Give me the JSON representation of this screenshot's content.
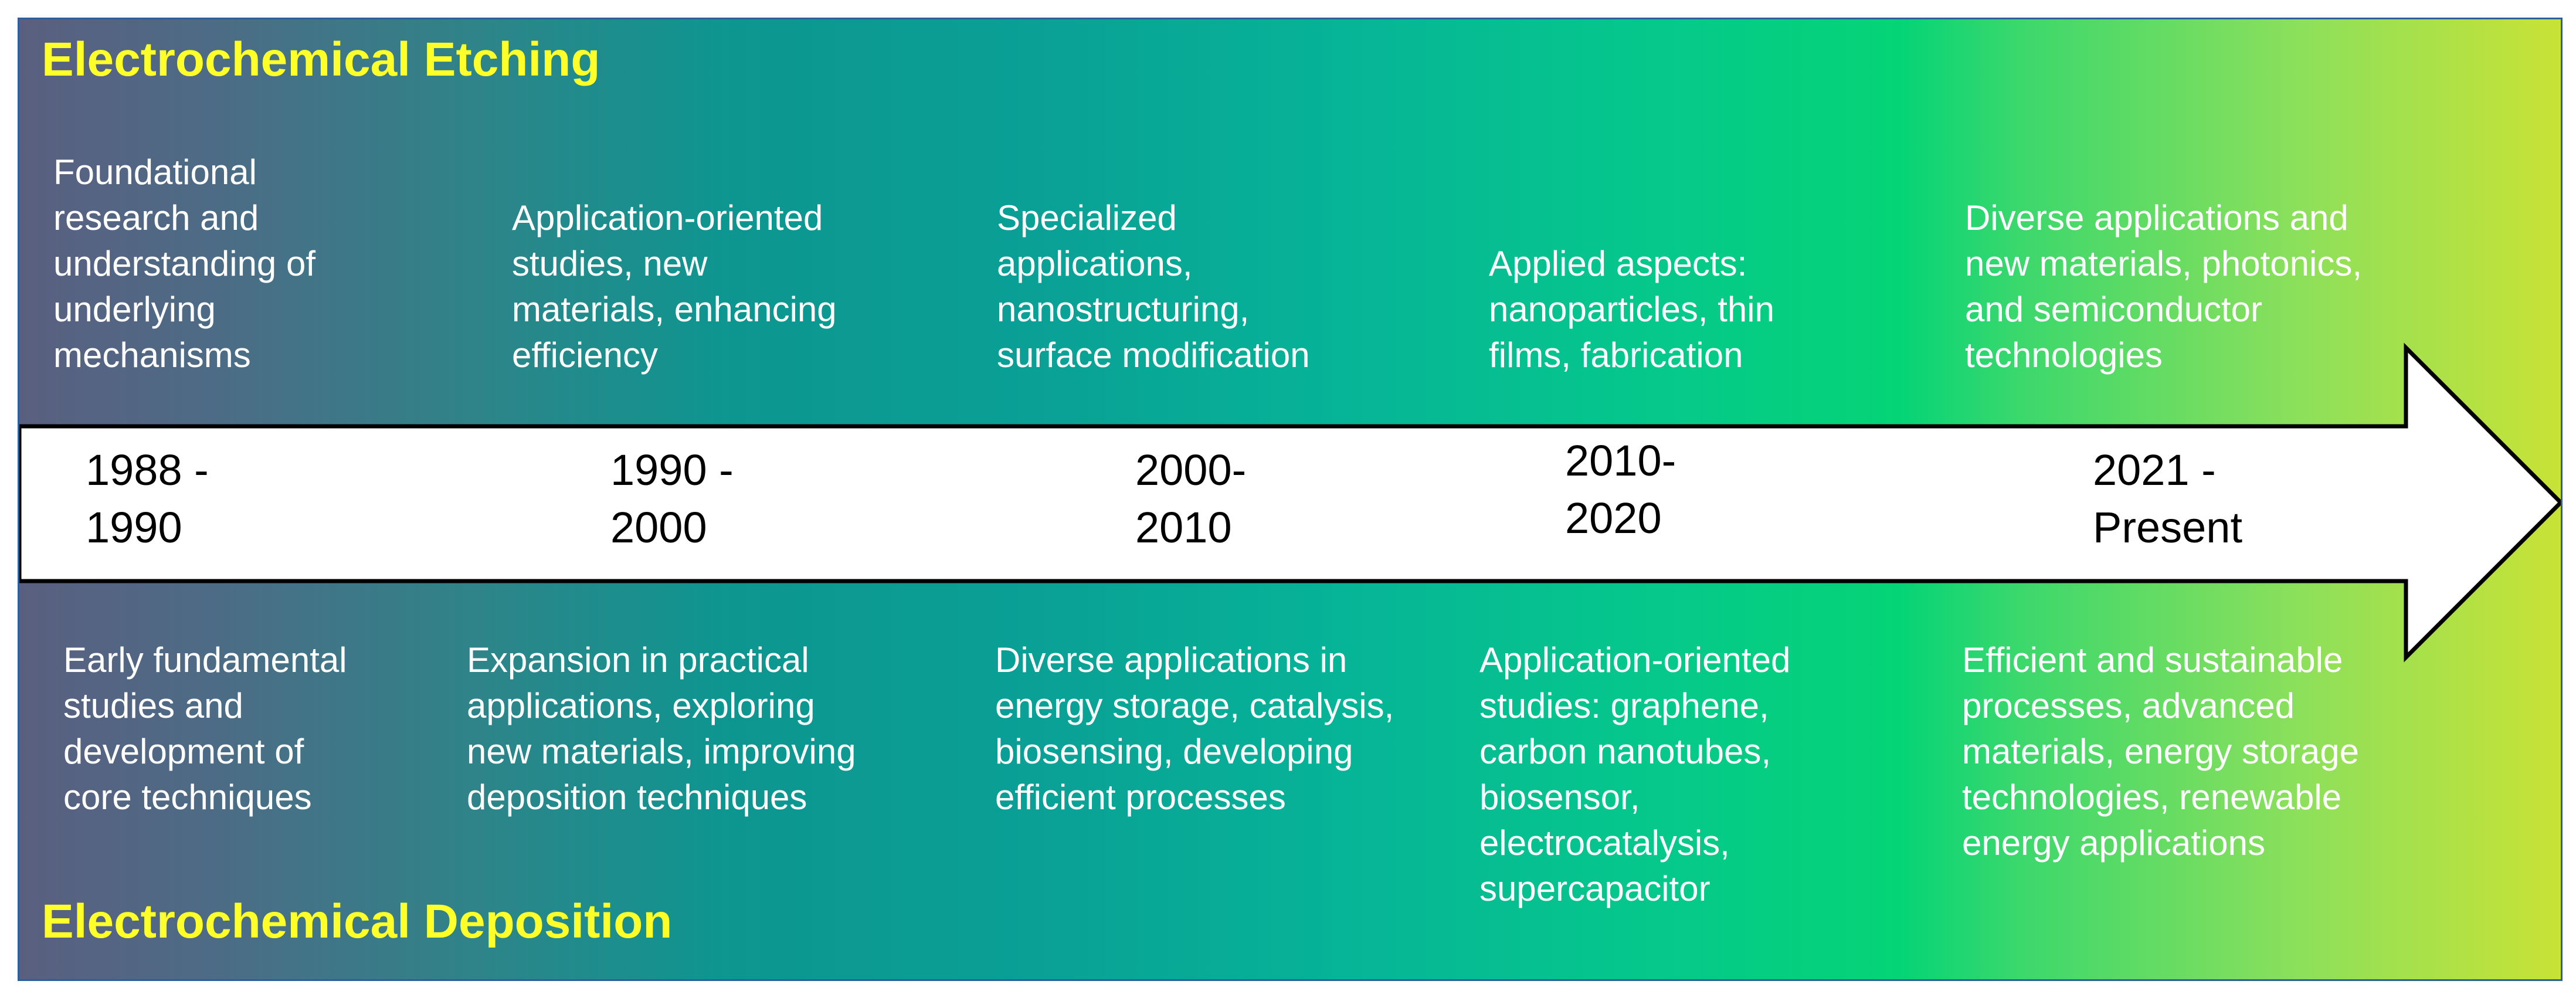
{
  "titles": {
    "top": "Electrochemical Etching",
    "bottom": "Electrochemical Deposition"
  },
  "periods": [
    {
      "label": "1988 -\n1990"
    },
    {
      "label": "1990 -\n2000"
    },
    {
      "label": "2000-\n2010"
    },
    {
      "label": "2010-\n2020"
    },
    {
      "label": "2021 -\nPresent"
    }
  ],
  "etching": [
    {
      "text": "Foundational\nresearch and\nunderstanding of\nunderlying\nmechanisms"
    },
    {
      "text": "Application-oriented\nstudies, new\nmaterials, enhancing\nefficiency"
    },
    {
      "text": "Specialized\napplications,\nnanostructuring,\nsurface modification"
    },
    {
      "text": "Applied aspects:\nnanoparticles, thin\nfilms, fabrication"
    },
    {
      "text": "Diverse applications and\nnew materials, photonics,\nand semiconductor\ntechnologies"
    }
  ],
  "deposition": [
    {
      "text": "Early fundamental\nstudies and\ndevelopment of\ncore techniques"
    },
    {
      "text": "Expansion in practical\napplications, exploring\nnew materials, improving\ndeposition techniques"
    },
    {
      "text": "Diverse applications in\nenergy storage, catalysis,\nbiosensing, developing\nefficient processes"
    },
    {
      "text": "Application-oriented\nstudies: graphene,\ncarbon nanotubes,\nbiosensor,\nelectrocatalysis,\nsupercapacitor"
    },
    {
      "text": "Efficient and sustainable\nprocesses, advanced\nmaterials, energy storage\ntechnologies, renewable\nenergy applications"
    }
  ],
  "colors": {
    "title": "#ffff2a",
    "description": "#ffffff",
    "arrow_fill": "#ffffff",
    "arrow_stroke": "#000000",
    "panel_border": "#2f5f9a"
  }
}
